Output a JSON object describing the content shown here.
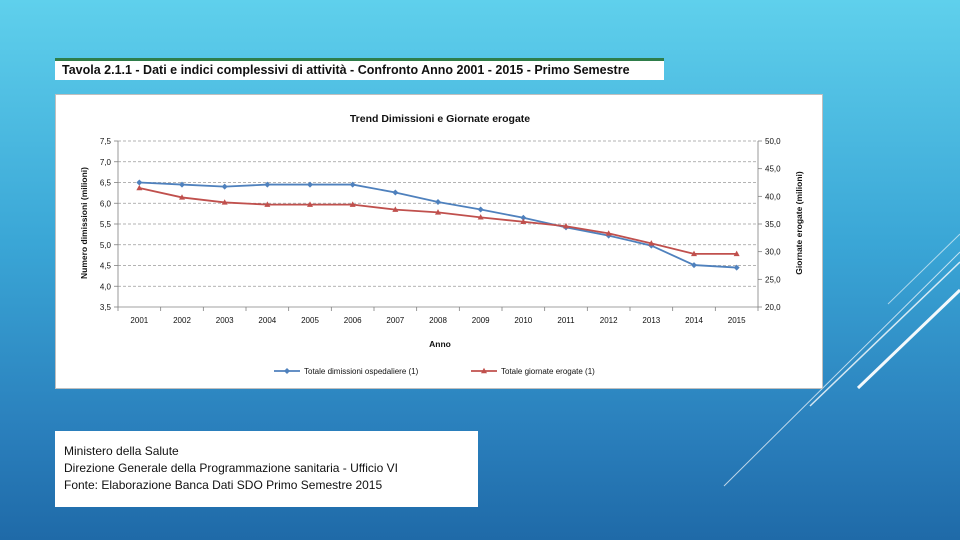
{
  "caption": "Tavola 2.1.1 - Dati e indici complessivi di attività - Confronto Anno 2001 - 2015 - Primo Semestre",
  "source_lines": [
    "Ministero della Salute",
    "Direzione Generale della Programmazione sanitaria - Ufficio VI",
    "Fonte: Elaborazione Banca Dati SDO Primo Semestre 2015"
  ],
  "chart_data": {
    "type": "line",
    "title": "Trend Dimissioni e Giornate erogate",
    "xlabel": "Anno",
    "ylabel": "Numero dimissioni (milioni)",
    "y2label": "Giornate erogate (milioni)",
    "categories": [
      "2001",
      "2002",
      "2003",
      "2004",
      "2005",
      "2006",
      "2007",
      "2008",
      "2009",
      "2010",
      "2011",
      "2012",
      "2013",
      "2014",
      "2015"
    ],
    "ylim": [
      3.5,
      7.5
    ],
    "y2lim": [
      20.0,
      50.0
    ],
    "yticks": [
      "3,5",
      "4,0",
      "4,5",
      "5,0",
      "5,5",
      "6,0",
      "6,5",
      "7,0",
      "7,5"
    ],
    "y2ticks": [
      "20,0",
      "25,0",
      "30,0",
      "35,0",
      "40,0",
      "45,0",
      "50,0"
    ],
    "grid": true,
    "legend_position": "bottom",
    "series": [
      {
        "name": "Totale dimissioni ospedaliere (1)",
        "axis": "left",
        "color": "#4f81bd",
        "marker": "diamond",
        "values": [
          6.5,
          6.45,
          6.4,
          6.45,
          6.45,
          6.45,
          6.26,
          6.03,
          5.85,
          5.65,
          5.42,
          5.22,
          4.98,
          4.51,
          4.45
        ]
      },
      {
        "name": "Totale giornate erogate (1)",
        "axis": "right",
        "color": "#c0504d",
        "marker": "triangle",
        "values": [
          41.5,
          39.8,
          38.9,
          38.5,
          38.5,
          38.5,
          37.6,
          37.1,
          36.2,
          35.4,
          34.6,
          33.3,
          31.5,
          29.6,
          29.6
        ]
      }
    ]
  }
}
